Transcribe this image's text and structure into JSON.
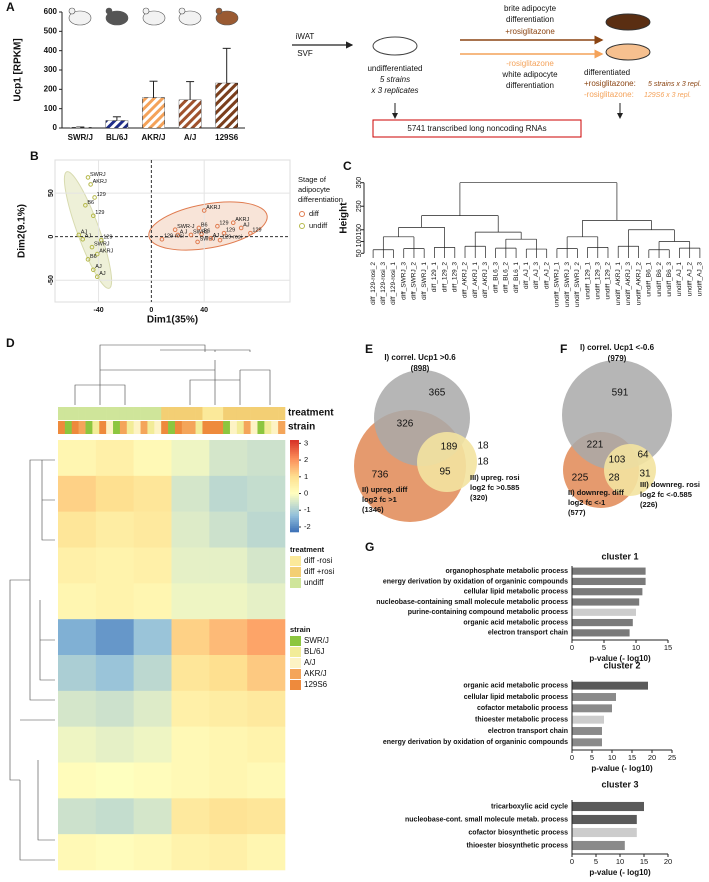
{
  "panels": [
    "A",
    "B",
    "C",
    "D",
    "E",
    "F",
    "G"
  ],
  "diagram": {
    "source": [
      "iWAT",
      "SVF"
    ],
    "undiff": [
      "undifferentiated",
      "5 strains",
      "x 3 replicates"
    ],
    "brite": [
      "brite adipocyte",
      "differentiation"
    ],
    "plus": "+rosiglitazone",
    "minus": "-rosiglitazone",
    "white": [
      "white adipocyte",
      "differentiation"
    ],
    "diff": "differentiated",
    "plus_note": [
      "+rosiglitazone:",
      "5 strains x 3 repl."
    ],
    "minus_note": [
      "-rosiglitazone:",
      "129S6 x 3 repl."
    ],
    "box": "5741 transcribed long noncoding RNAs"
  },
  "venn": [
    {
      "title": "I) correl. Ucp1 >0.6",
      "total": "(898)",
      "counts": [
        365,
        326,
        189,
        18,
        736,
        95,
        18
      ],
      "set2": [
        "II) upreg. diff",
        "log2 fc >1",
        "(1346)"
      ],
      "set3": [
        "III) upreg. rosi",
        "log2 fc >0.585",
        "(320)"
      ]
    },
    {
      "title": "I) correl. Ucp1 <-0.6",
      "total": "(979)",
      "counts": [
        591,
        221,
        103,
        64,
        225,
        28,
        31
      ],
      "set2": [
        "II) downreg. diff",
        "log2 fc <-1",
        "(577)"
      ],
      "set3": [
        "III) downreg. rosi",
        "log2 fc <-0.585",
        "(226)"
      ]
    }
  ],
  "chart_data": [
    {
      "type": "bar",
      "ylabel": "Ucp1 [RPKM]",
      "categories": [
        "SWR/J",
        "BL/6J",
        "AKR/J",
        "A/J",
        "129S6"
      ],
      "values": [
        3,
        38,
        157,
        145,
        232
      ],
      "errors": [
        2,
        20,
        85,
        95,
        180
      ],
      "colors": [
        "#ffffff",
        "#1f2d8a",
        "#f4a259",
        "#a0522d",
        "#7b3f1d"
      ],
      "ylim": [
        0,
        600
      ],
      "yticks": [
        0,
        100,
        200,
        300,
        400,
        500,
        600
      ]
    },
    {
      "type": "scatter",
      "xlabel": "Dim1(35%)",
      "ylabel": "Dim2(9.1%)",
      "xlim": [
        -73,
        105
      ],
      "ylim": [
        -75,
        88
      ],
      "xticks": [
        -40,
        0,
        40
      ],
      "yticks": [
        -50,
        0,
        50
      ],
      "grid": true,
      "legend_title": [
        "Stage of",
        "adipocyte",
        "differentiation"
      ],
      "series": [
        {
          "name": "diff",
          "color": "#e07b4f",
          "x": [
            40,
            62,
            50,
            68,
            36,
            18,
            55,
            75,
            38,
            30,
            20,
            8,
            52,
            35,
            45
          ],
          "y": [
            30,
            16,
            12,
            10,
            10,
            8,
            4,
            4,
            3,
            2,
            2,
            -3,
            -4,
            -6,
            -2
          ],
          "labels": [
            "AKRJ",
            "AKRJ",
            "129",
            "AJ",
            "B6",
            "SWR-J",
            "129",
            "129",
            "B6",
            "SWRJ",
            "A J",
            "129-rosi",
            "129-rosi",
            "SWRJ",
            "AJ"
          ]
        },
        {
          "name": "undiff",
          "color": "#b5b84a",
          "x": [
            -48,
            -46,
            -43,
            -50,
            -44,
            -55,
            -52,
            -38,
            -45,
            -41,
            -48,
            -44,
            -41
          ],
          "y": [
            68,
            60,
            45,
            36,
            24,
            2,
            -3,
            -4,
            -12,
            -20,
            -26,
            -38,
            -46
          ],
          "labels": [
            "SWRJ",
            "AKRJ",
            "129",
            "B6",
            "129",
            "AJ",
            "AJ",
            "129",
            "SWRJ",
            "AKRJ",
            "B6",
            "AJ",
            "AJ"
          ]
        }
      ]
    },
    {
      "type": "dendrogram",
      "ylabel": "Height",
      "ylim": [
        30,
        370
      ],
      "yticks": [
        50,
        100,
        150,
        250,
        350
      ],
      "leaves": [
        "diff_129-rosi_2",
        "diff_129-rosi_3",
        "diff_129-rosi_1",
        "diff_SWRJ_3",
        "diff_SWRJ_2",
        "diff_SWRJ_1",
        "diff_129_1",
        "diff_129_2",
        "diff_129_3",
        "diff_AKRJ_2",
        "diff_AKRJ_1",
        "diff_AKRJ_3",
        "diff_BL6_3",
        "diff_BL6_2",
        "diff_BL6_1",
        "diff_AJ_1",
        "diff_AJ_3",
        "diff_AJ_2",
        "undiff_SWRJ_1",
        "undiff_SWRJ_3",
        "undiff_SWRJ_2",
        "undiff_129_1",
        "undiff_129_3",
        "undiff_129_2",
        "undiff_AKRJ_1",
        "undiff_AKRJ_3",
        "undiff_AKRJ_2",
        "undiff_B6_1",
        "undiff_B6_2",
        "undiff_B6_3",
        "undiff_AJ_1",
        "undiff_AJ_2",
        "undiff_AJ_3"
      ],
      "tree": {
        "height": 350,
        "children": [
          {
            "height": 210,
            "children": [
              {
                "height": 160,
                "children": [
                  {
                    "height": 120,
                    "children": [
                      {
                        "height": 65,
                        "children": [
                          0,
                          1,
                          2
                        ]
                      },
                      {
                        "height": 70,
                        "children": [
                          3,
                          4,
                          5
                        ]
                      }
                    ]
                  },
                  {
                    "height": 75,
                    "children": [
                      6,
                      7,
                      8
                    ]
                  }
                ]
              },
              {
                "height": 140,
                "children": [
                  {
                    "height": 80,
                    "children": [
                      9,
                      10,
                      11
                    ]
                  },
                  {
                    "height": 110,
                    "children": [
                      {
                        "height": 72,
                        "children": [
                          12,
                          13,
                          14
                        ]
                      },
                      {
                        "height": 68,
                        "children": [
                          15,
                          16,
                          17
                        ]
                      }
                    ]
                  }
                ]
              }
            ]
          },
          {
            "height": 190,
            "children": [
              {
                "height": 120,
                "children": [
                  {
                    "height": 70,
                    "children": [
                      18,
                      19,
                      20
                    ]
                  },
                  {
                    "height": 75,
                    "children": [
                      21,
                      22,
                      23
                    ]
                  }
                ]
              },
              {
                "height": 150,
                "children": [
                  {
                    "height": 80,
                    "children": [
                      24,
                      25,
                      26
                    ]
                  },
                  {
                    "height": 100,
                    "children": [
                      {
                        "height": 65,
                        "children": [
                          27,
                          28,
                          29
                        ]
                      },
                      {
                        "height": 72,
                        "children": [
                          30,
                          31,
                          32
                        ]
                      }
                    ]
                  }
                ]
              }
            ]
          }
        ]
      }
    },
    {
      "type": "heatmap",
      "clim": [
        -2.3,
        3.2
      ],
      "colorbar_ticks": [
        3,
        2,
        1,
        0,
        -1,
        -2
      ],
      "values": [
        [
          0.3,
          0.5,
          0.2,
          -0.2,
          -0.5,
          -0.6
        ],
        [
          1.2,
          1.0,
          0.8,
          -0.5,
          -0.8,
          -0.7
        ],
        [
          0.8,
          0.6,
          0.7,
          -0.4,
          -0.6,
          -0.8
        ],
        [
          0.5,
          0.4,
          0.5,
          -0.3,
          -0.3,
          -0.5
        ],
        [
          0.3,
          0.4,
          0.3,
          -0.2,
          -0.2,
          -0.3
        ],
        [
          -1.5,
          -1.8,
          -1.2,
          1.2,
          1.5,
          1.8
        ],
        [
          -1.0,
          -1.2,
          -0.8,
          0.8,
          1.0,
          1.3
        ],
        [
          -0.5,
          -0.6,
          -0.4,
          0.5,
          0.6,
          0.7
        ],
        [
          -0.2,
          -0.3,
          -0.2,
          0.2,
          0.3,
          0.4
        ],
        [
          0.1,
          0,
          0.1,
          0.2,
          0.3,
          0.2
        ],
        [
          -0.6,
          -0.7,
          -0.5,
          0.7,
          0.9,
          0.8
        ],
        [
          0.2,
          0.1,
          0.2,
          0.4,
          0.5,
          0.3
        ]
      ],
      "treatment": {
        "title": "treatment",
        "names": [
          "diff -rosi",
          "diff +rosi",
          "undiff"
        ],
        "colors": [
          "#fbe99a",
          "#f3cf74",
          "#cfe59a"
        ],
        "columns": [
          2,
          2,
          2,
          2,
          2,
          2,
          2,
          2,
          2,
          2,
          2,
          2,
          2,
          2,
          2,
          1,
          1,
          1,
          1,
          1,
          1,
          0,
          0,
          0,
          1,
          1,
          1,
          1,
          1,
          1,
          1,
          1,
          1
        ]
      },
      "strain": {
        "title": "strain",
        "names": [
          "SWR/J",
          "BL/6J",
          "A/J",
          "AKR/J",
          "129S6"
        ],
        "colors": [
          "#8cc63f",
          "#f2ec98",
          "#fdf3c4",
          "#f4a55a",
          "#ee8a3c"
        ],
        "columns": [
          4,
          0,
          4,
          3,
          0,
          1,
          4,
          2,
          0,
          3,
          1,
          2,
          3,
          1,
          2,
          4,
          0,
          4,
          3,
          3,
          1,
          4,
          4,
          4,
          0,
          2,
          1,
          3,
          2,
          0,
          1,
          2,
          3
        ]
      }
    },
    {
      "type": "hbar",
      "title": "cluster 1",
      "xlabel": "p-value (- log10)",
      "categories": [
        "organophosphate metabolic process",
        "energy derivation by oxidation of organinic compounds",
        "cellular lipid metabolic process",
        "nucleobase-containing small molecule metabolic process",
        "purine-containing compound metabolic process",
        "organic acid metabolic process",
        "electron transport chain"
      ],
      "values": [
        11.5,
        11.5,
        11,
        10.5,
        10,
        9.5,
        9
      ],
      "colors": [
        "#7a7a7a",
        "#7a7a7a",
        "#7a7a7a",
        "#7a7a7a",
        "#cccccc",
        "#7a7a7a",
        "#7a7a7a"
      ],
      "xlim": [
        0,
        15
      ],
      "xticks": [
        0,
        5,
        10,
        15
      ]
    },
    {
      "type": "hbar",
      "title": "cluster 2",
      "xlabel": "p-value (- log10)",
      "categories": [
        "organic acid metabolic process",
        "cellular lipid metabolic process",
        "cofactor metabolic process",
        "thioester metabolic process",
        "electron transport chain",
        "energy derivation by oxidation of organinic compounds"
      ],
      "values": [
        19,
        11,
        10,
        8,
        7.5,
        7.5
      ],
      "colors": [
        "#5a5a5a",
        "#8a8a8a",
        "#8a8a8a",
        "#cccccc",
        "#8a8a8a",
        "#8a8a8a"
      ],
      "xlim": [
        0,
        25
      ],
      "xticks": [
        0,
        5,
        10,
        15,
        20,
        25
      ]
    },
    {
      "type": "hbar",
      "title": "cluster 3",
      "xlabel": "p-value (- log10)",
      "categories": [
        "tricarboxylic acid cycle",
        "nucleobase-cont. small molecule metab. process",
        "cofactor biosynthetic process",
        "thioester biosynthetic process"
      ],
      "values": [
        15,
        13.5,
        13.5,
        11
      ],
      "colors": [
        "#5a5a5a",
        "#5a5a5a",
        "#cccccc",
        "#8a8a8a"
      ],
      "xlim": [
        0,
        20
      ],
      "xticks": [
        0,
        5,
        10,
        15,
        20
      ]
    }
  ]
}
